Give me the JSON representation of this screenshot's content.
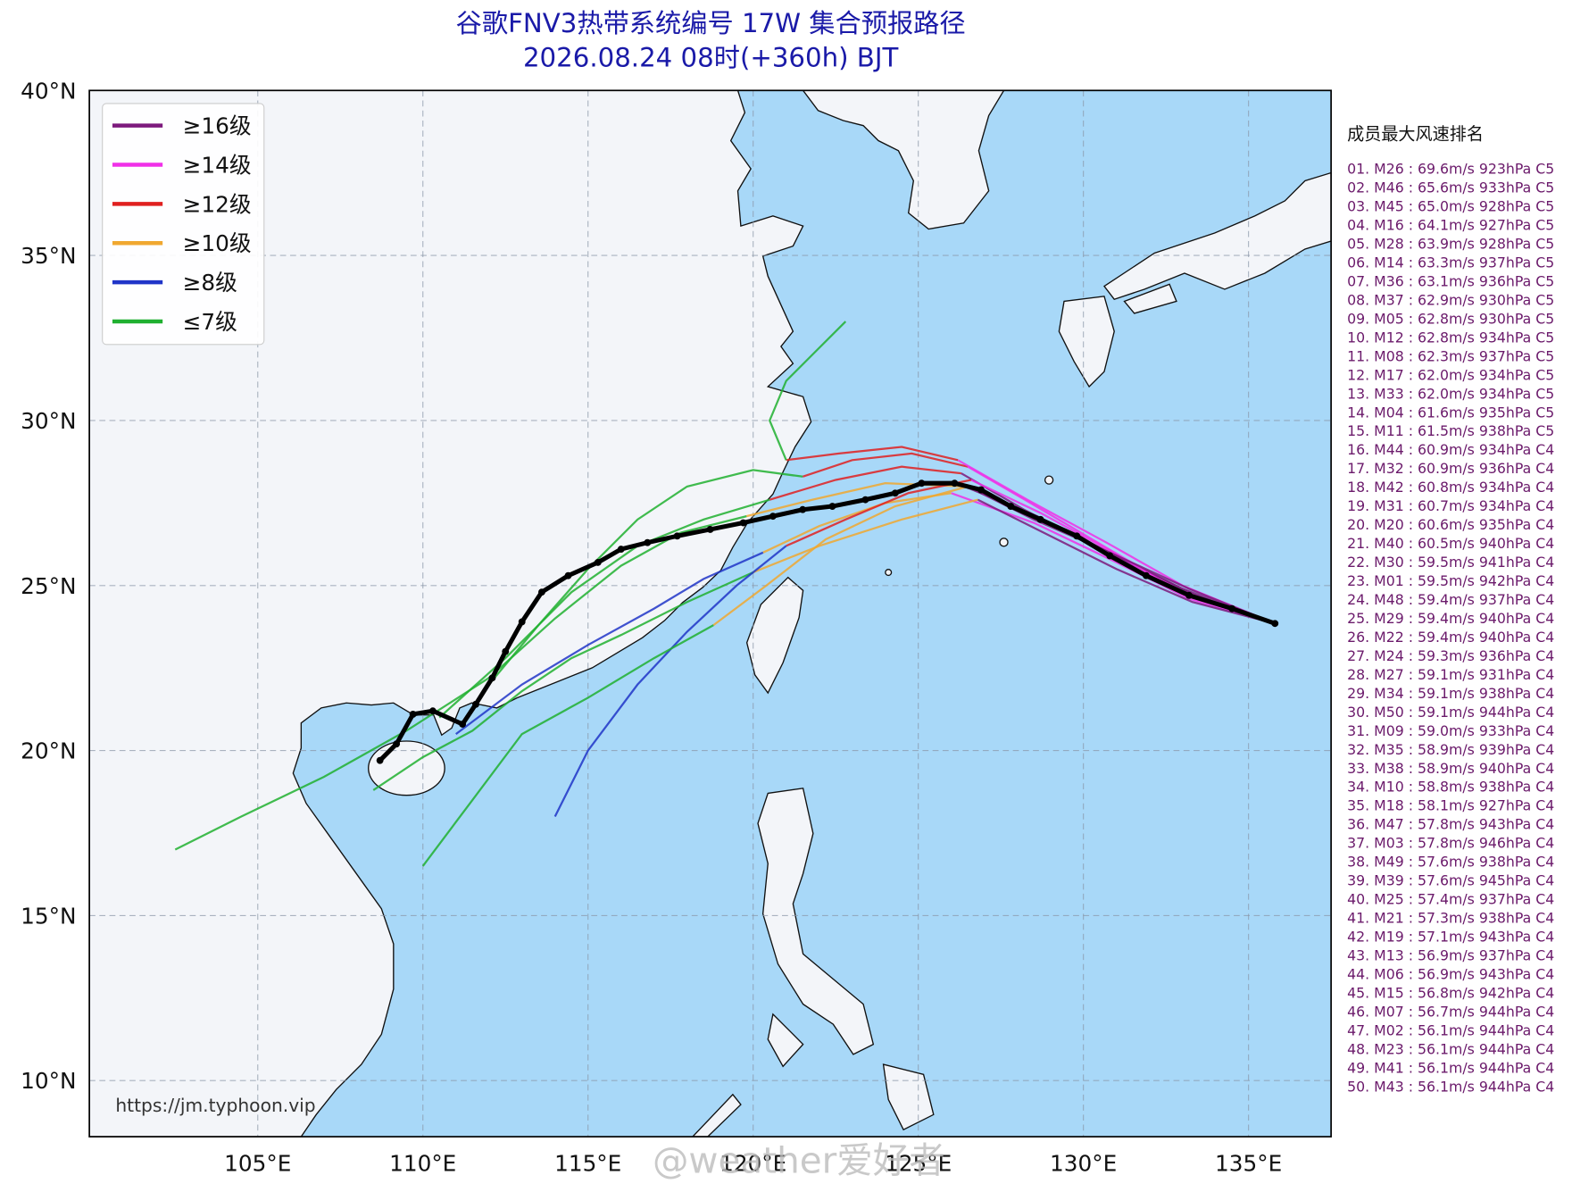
{
  "header": {
    "title": "谷歌FNV3热带系统编号 17W 集合预报路径",
    "subtitle": "2026.08.24 08时(+360h) BJT"
  },
  "map": {
    "lonlim": [
      99.9,
      137.5
    ],
    "latlim": [
      8.3,
      40
    ],
    "lonticks": [
      {
        "value": 105,
        "label": "105°E"
      },
      {
        "value": 110,
        "label": "110°E"
      },
      {
        "value": 115,
        "label": "115°E"
      },
      {
        "value": 120,
        "label": "120°E"
      },
      {
        "value": 125,
        "label": "125°E"
      },
      {
        "value": 130,
        "label": "130°E"
      },
      {
        "value": 135,
        "label": "135°E"
      }
    ],
    "latticks": [
      {
        "value": 10,
        "label": "10°N"
      },
      {
        "value": 15,
        "label": "15°N"
      },
      {
        "value": 20,
        "label": "20°N"
      },
      {
        "value": 25,
        "label": "25°N"
      },
      {
        "value": 30,
        "label": "30°N"
      },
      {
        "value": 35,
        "label": "35°N"
      },
      {
        "value": 40,
        "label": "40°N"
      }
    ],
    "grid": true
  },
  "legend": [
    {
      "label": "≥16级",
      "color": "#7d1a7d"
    },
    {
      "label": "≥14级",
      "color": "#f030e8"
    },
    {
      "label": "≥12级",
      "color": "#e02020"
    },
    {
      "label": "≥10级",
      "color": "#f0a830"
    },
    {
      "label": "≥8级",
      "color": "#2035c8"
    },
    {
      "label": "≤7级",
      "color": "#20b030"
    }
  ],
  "members": [
    {
      "pieces": [
        {
          "color": "#7d1a7d",
          "lon": [
            135.8,
            133.0,
            130.5,
            128.2,
            126.3
          ],
          "lat": [
            23.85,
            24.9,
            26.1,
            27.3,
            28.4
          ]
        },
        {
          "color": "#e02020",
          "lon": [
            126.3,
            124.5,
            122.5,
            120.5
          ],
          "lat": [
            28.4,
            28.6,
            28.2,
            27.6
          ]
        },
        {
          "color": "#20b030",
          "lon": [
            120.5,
            118.5,
            116.5,
            114.5,
            112.5,
            110.5
          ],
          "lat": [
            27.6,
            27.0,
            26.2,
            24.8,
            22.8,
            21.0
          ]
        }
      ]
    },
    {
      "pieces": [
        {
          "color": "#f030e8",
          "lon": [
            135.8,
            133.2,
            130.8,
            128.5,
            126.0
          ],
          "lat": [
            23.85,
            24.6,
            25.8,
            26.9,
            27.8
          ]
        },
        {
          "color": "#f0a830",
          "lon": [
            126.0,
            124.0,
            122.0,
            120.3
          ],
          "lat": [
            27.8,
            27.5,
            26.8,
            26.0
          ]
        },
        {
          "color": "#2035c8",
          "lon": [
            120.3,
            118.5,
            117.0,
            115.0,
            113.0,
            111.0
          ],
          "lat": [
            26.0,
            25.2,
            24.3,
            23.2,
            22.0,
            20.5
          ]
        }
      ]
    },
    {
      "pieces": [
        {
          "color": "#f030e8",
          "lon": [
            135.8,
            133.0,
            130.6,
            128.4,
            126.5
          ],
          "lat": [
            23.85,
            24.8,
            26.2,
            27.5,
            28.6
          ]
        },
        {
          "color": "#e02020",
          "lon": [
            126.5,
            124.8,
            123.0,
            121.5
          ],
          "lat": [
            28.6,
            29.0,
            28.8,
            28.3
          ]
        },
        {
          "color": "#20b030",
          "lon": [
            121.5,
            120.0,
            118.0,
            116.5,
            115.0,
            113.5,
            112.0
          ],
          "lat": [
            28.3,
            28.5,
            28.0,
            27.0,
            25.5,
            23.8,
            22.0
          ]
        }
      ]
    },
    {
      "pieces": [
        {
          "color": "#7d1a7d",
          "lon": [
            135.8,
            133.3,
            131.0,
            128.8,
            126.8
          ],
          "lat": [
            23.85,
            24.5,
            25.5,
            26.6,
            27.6
          ]
        },
        {
          "color": "#f0a830",
          "lon": [
            126.8,
            124.5,
            122.0,
            120.0
          ],
          "lat": [
            27.6,
            27.0,
            26.2,
            25.4
          ]
        },
        {
          "color": "#20b030",
          "lon": [
            120.0,
            118.0,
            116.0,
            114.5,
            113.0,
            111.5,
            110.0,
            108.5
          ],
          "lat": [
            25.4,
            24.5,
            23.5,
            22.8,
            21.8,
            20.6,
            19.8,
            18.8
          ]
        }
      ]
    },
    {
      "pieces": [
        {
          "color": "#f030e8",
          "lon": [
            135.8,
            133.0,
            130.7,
            128.3,
            126.2
          ],
          "lat": [
            23.85,
            25.0,
            26.3,
            27.6,
            28.8
          ]
        },
        {
          "color": "#e02020",
          "lon": [
            126.2,
            124.5,
            122.6,
            121.0
          ],
          "lat": [
            28.8,
            29.2,
            29.0,
            28.8
          ]
        },
        {
          "color": "#20b030",
          "lon": [
            121.0,
            120.5,
            121.0,
            122.0,
            122.8
          ],
          "lat": [
            28.8,
            30.0,
            31.2,
            32.2,
            33.0
          ]
        }
      ]
    },
    {
      "pieces": [
        {
          "color": "#7d1a7d",
          "lon": [
            135.8,
            133.4,
            131.0,
            128.6,
            126.4
          ],
          "lat": [
            23.85,
            24.7,
            25.9,
            27.1,
            28.0
          ]
        },
        {
          "color": "#f0a830",
          "lon": [
            126.4,
            124.0,
            121.8,
            119.8
          ],
          "lat": [
            28.0,
            28.1,
            27.6,
            27.1
          ]
        },
        {
          "color": "#20b030",
          "lon": [
            119.8,
            117.8,
            116.0,
            114.0,
            112.0,
            109.5,
            107.0,
            104.5,
            102.5
          ],
          "lat": [
            27.1,
            26.6,
            25.6,
            24.0,
            22.2,
            20.6,
            19.2,
            18.0,
            17.0
          ]
        }
      ]
    },
    {
      "pieces": [
        {
          "color": "#f030e8",
          "lon": [
            135.8,
            133.1,
            130.9,
            128.7,
            126.6
          ],
          "lat": [
            23.85,
            24.7,
            26.0,
            27.2,
            28.2
          ]
        },
        {
          "color": "#e02020",
          "lon": [
            126.6,
            124.7,
            122.8,
            121.0
          ],
          "lat": [
            28.2,
            27.8,
            27.0,
            26.2
          ]
        },
        {
          "color": "#2035c8",
          "lon": [
            121.0,
            119.5,
            118.0,
            116.5,
            115.0,
            114.0
          ],
          "lat": [
            26.2,
            25.0,
            23.6,
            22.0,
            20.0,
            18.0
          ]
        }
      ]
    },
    {
      "pieces": [
        {
          "color": "#7d1a7d",
          "lon": [
            135.8,
            133.2,
            130.8,
            128.5,
            126.5
          ],
          "lat": [
            23.85,
            24.9,
            26.0,
            27.0,
            28.0
          ]
        },
        {
          "color": "#f0a830",
          "lon": [
            126.5,
            124.3,
            122.2,
            120.4,
            118.8
          ],
          "lat": [
            28.0,
            27.4,
            26.4,
            25.0,
            23.8
          ]
        },
        {
          "color": "#20b030",
          "lon": [
            118.8,
            117.0,
            115.0,
            113.0,
            111.5,
            110.0
          ],
          "lat": [
            23.8,
            22.8,
            21.6,
            20.5,
            18.5,
            16.5
          ]
        }
      ]
    }
  ],
  "mean_track": {
    "color": "#000000",
    "lon": [
      135.8,
      134.5,
      133.2,
      131.9,
      130.8,
      129.8,
      128.7,
      127.8,
      126.9,
      126.1,
      125.1,
      124.3,
      123.4,
      122.4,
      121.5,
      120.6,
      119.7,
      118.7,
      117.7,
      116.8,
      116.0,
      115.3,
      114.4,
      113.6,
      113.0,
      112.5,
      112.1,
      111.6,
      111.2,
      110.3,
      109.7,
      109.2,
      108.7
    ],
    "lat": [
      23.85,
      24.3,
      24.7,
      25.3,
      25.9,
      26.5,
      27.0,
      27.4,
      27.9,
      28.1,
      28.1,
      27.8,
      27.6,
      27.4,
      27.3,
      27.1,
      26.9,
      26.7,
      26.5,
      26.3,
      26.1,
      25.7,
      25.3,
      24.8,
      23.9,
      23.0,
      22.2,
      21.4,
      20.8,
      21.2,
      21.1,
      20.2,
      19.7
    ]
  },
  "ranking": {
    "title": "成员最大风速排名",
    "items": [
      "01. M26 : 69.6m/s 923hPa C5",
      "02. M46 : 65.6m/s 933hPa C5",
      "03. M45 : 65.0m/s 928hPa C5",
      "04. M16 : 64.1m/s 927hPa C5",
      "05. M28 : 63.9m/s 928hPa C5",
      "06. M14 : 63.3m/s 937hPa C5",
      "07. M36 : 63.1m/s 936hPa C5",
      "08. M37 : 62.9m/s 930hPa C5",
      "09. M05 : 62.8m/s 930hPa C5",
      "10. M12 : 62.8m/s 934hPa C5",
      "11. M08 : 62.3m/s 937hPa C5",
      "12. M17 : 62.0m/s 934hPa C5",
      "13. M33 : 62.0m/s 934hPa C5",
      "14. M04 : 61.6m/s 935hPa C5",
      "15. M11 : 61.5m/s 938hPa C5",
      "16. M44 : 60.9m/s 934hPa C4",
      "17. M32 : 60.9m/s 936hPa C4",
      "18. M42 : 60.8m/s 934hPa C4",
      "19. M31 : 60.7m/s 934hPa C4",
      "20. M20 : 60.6m/s 935hPa C4",
      "21. M40 : 60.5m/s 940hPa C4",
      "22. M30 : 59.5m/s 941hPa C4",
      "23. M01 : 59.5m/s 942hPa C4",
      "24. M48 : 59.4m/s 937hPa C4",
      "25. M29 : 59.4m/s 940hPa C4",
      "26. M22 : 59.4m/s 940hPa C4",
      "27. M24 : 59.3m/s 936hPa C4",
      "28. M27 : 59.1m/s 931hPa C4",
      "29. M34 : 59.1m/s 938hPa C4",
      "30. M50 : 59.1m/s 944hPa C4",
      "31. M09 : 59.0m/s 933hPa C4",
      "32. M35 : 58.9m/s 939hPa C4",
      "33. M38 : 58.9m/s 940hPa C4",
      "34. M10 : 58.8m/s 938hPa C4",
      "35. M18 : 58.1m/s 927hPa C4",
      "36. M47 : 57.8m/s 943hPa C4",
      "37. M03 : 57.8m/s 946hPa C4",
      "38. M49 : 57.6m/s 938hPa C4",
      "39. M39 : 57.6m/s 945hPa C4",
      "40. M25 : 57.4m/s 937hPa C4",
      "41. M21 : 57.3m/s 938hPa C4",
      "42. M19 : 57.1m/s 943hPa C4",
      "43. M13 : 56.9m/s 937hPa C4",
      "44. M06 : 56.9m/s 943hPa C4",
      "45. M15 : 56.8m/s 942hPa C4",
      "46. M07 : 56.7m/s 944hPa C4",
      "47. M02 : 56.1m/s 944hPa C4",
      "48. M23 : 56.1m/s 944hPa C4",
      "49. M41 : 56.1m/s 944hPa C4",
      "50. M43 : 56.1m/s 944hPa C4"
    ]
  },
  "source_url": "https://jm.typhoon.vip",
  "watermark": "@weather爱好者"
}
